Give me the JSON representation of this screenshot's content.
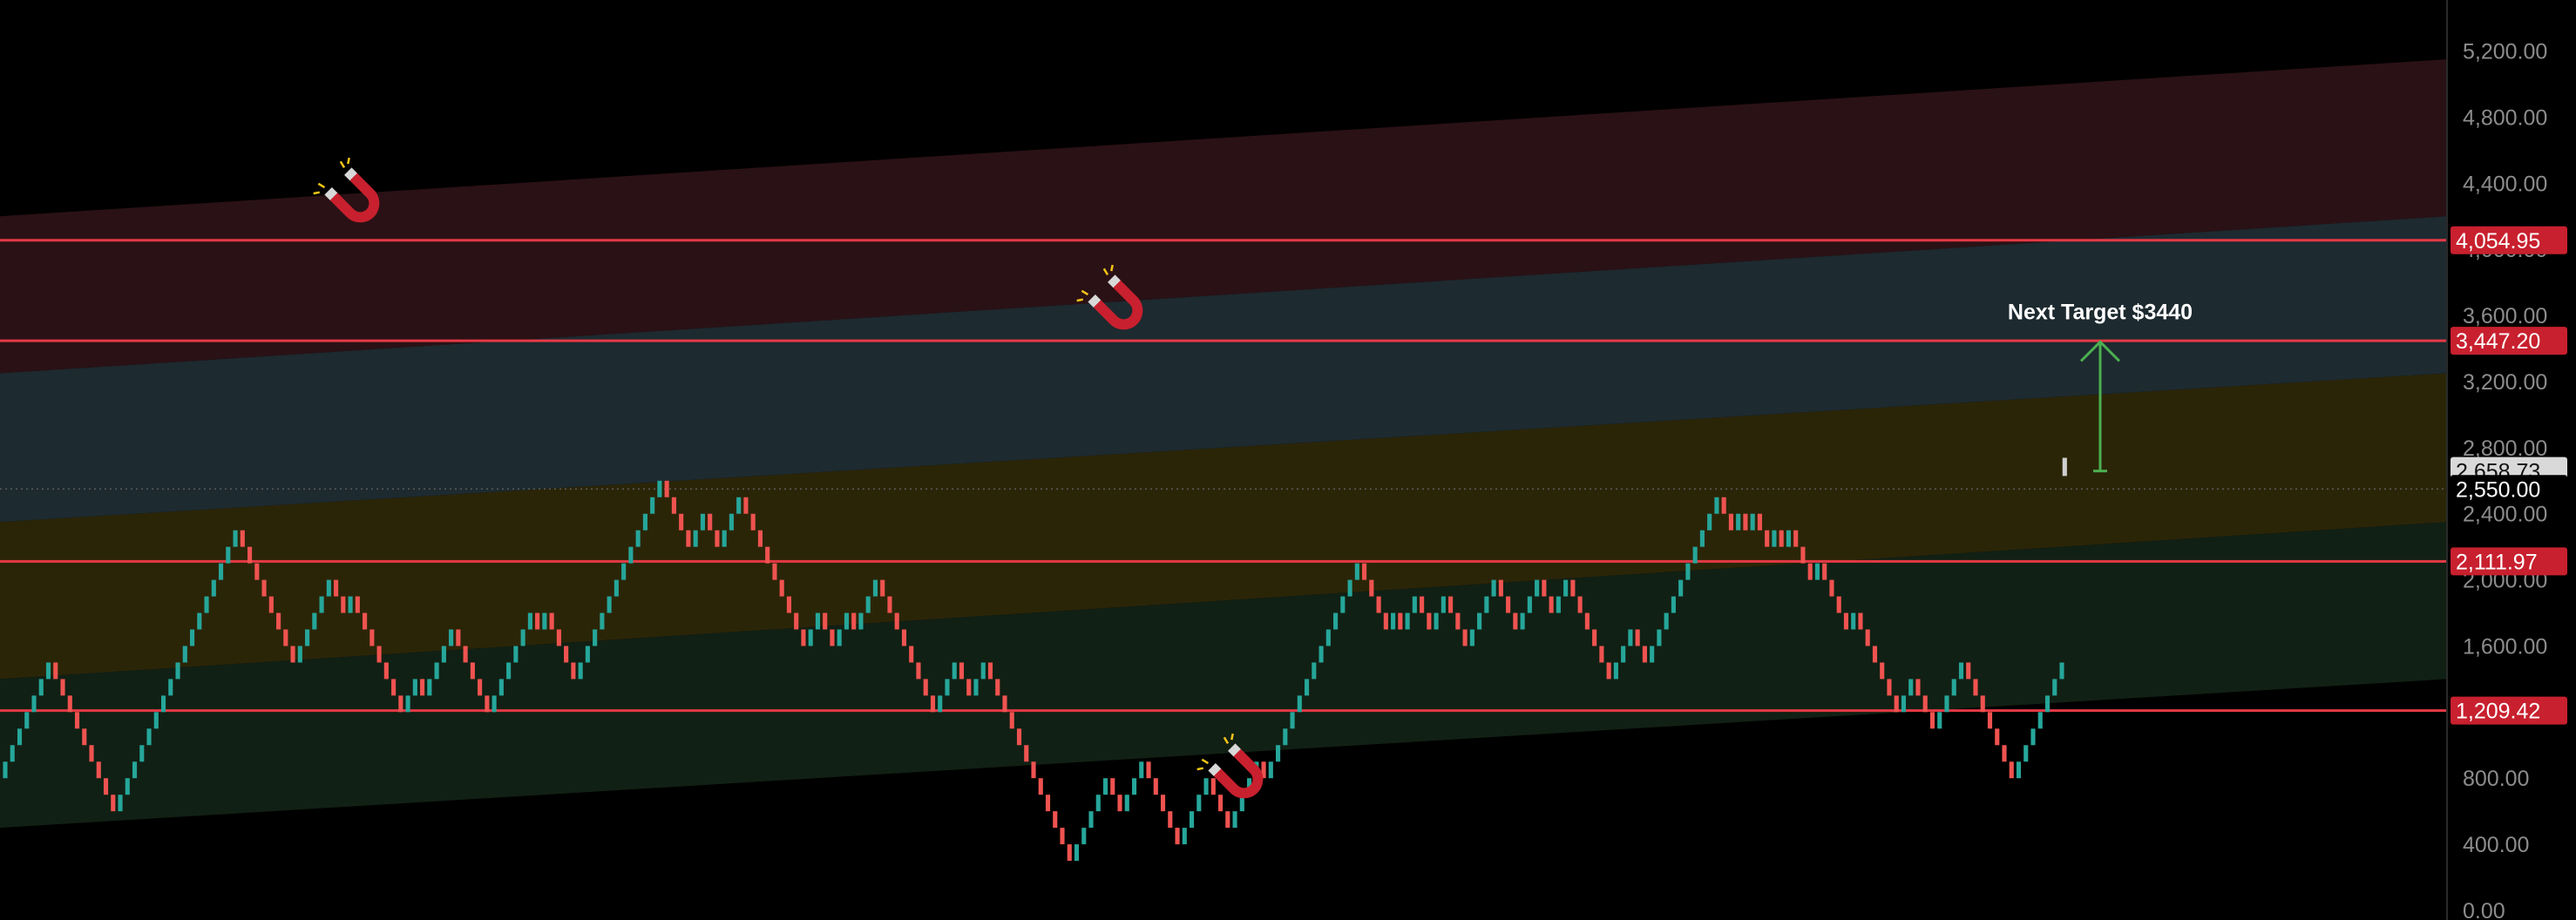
{
  "chart_data": {
    "type": "renko",
    "y_axis": {
      "position": "right",
      "ylim": [
        0,
        5500
      ],
      "ticks": [
        "0.00",
        "400.00",
        "800.00",
        "1,200.00",
        "1,600.00",
        "2,000.00",
        "2,400.00",
        "2,800.00",
        "3,200.00",
        "3,600.00",
        "4,000.00",
        "4,400.00",
        "4,800.00",
        "5,200.00"
      ],
      "tick_values": [
        0,
        400,
        800,
        1200,
        1600,
        2000,
        2400,
        2800,
        3200,
        3600,
        4000,
        4400,
        4800,
        5200
      ]
    },
    "levels": [
      {
        "value": 4054.95,
        "label": "4,054.95"
      },
      {
        "value": 3447.2,
        "label": "3,447.20"
      },
      {
        "value": 2111.97,
        "label": "2,111.97"
      },
      {
        "value": 1209.42,
        "label": "1,209.42"
      }
    ],
    "current_price": {
      "value": 2658.73,
      "label": "2,658.73"
    },
    "second_price": {
      "value": 2550.0,
      "label": "2,550.00"
    },
    "annotation": {
      "text": "Next Target $3440",
      "from_value": 2658.73,
      "to_value": 3440
    },
    "bands": [
      {
        "color": "#2a1115",
        "top": [
          4200,
          5150
        ],
        "bottom": [
          3250,
          4200
        ]
      },
      {
        "color": "#1d2a30",
        "top": [
          3250,
          4200
        ],
        "bottom": [
          2350,
          3250
        ]
      },
      {
        "color": "#2b2508",
        "top": [
          2350,
          3250
        ],
        "bottom": [
          1400,
          2350
        ]
      },
      {
        "color": "#112014",
        "top": [
          1400,
          2350
        ],
        "bottom": [
          500,
          1400
        ]
      }
    ],
    "renko": {
      "start": 800,
      "brick_size": 100,
      "segments": [
        7,
        -9,
        17,
        -8,
        5,
        -2,
        1,
        -7,
        2,
        -1,
        4,
        -5,
        6,
        -1,
        1,
        -4,
        12,
        -4,
        2,
        -2,
        3,
        -9,
        2,
        -2,
        2,
        -1,
        3,
        -8,
        2,
        1,
        -2,
        2,
        -12,
        5,
        -2,
        3,
        -5,
        4,
        -3,
        4,
        -1,
        13,
        -4,
        1,
        -1,
        2,
        -2,
        2,
        -3,
        4,
        -3,
        3,
        -2,
        2,
        -6,
        3,
        -2,
        1,
        1,
        5,
        3,
        -2,
        1,
        -1,
        1,
        -2,
        1,
        -1,
        1,
        -3,
        1,
        -4,
        1,
        -6,
        2,
        -3,
        4,
        -7,
        6,
        1
      ]
    },
    "magnet_icons": [
      "magnet-icon",
      "magnet-icon",
      "magnet-icon"
    ],
    "colors": {
      "up": "#26a69a",
      "down": "#ef5350",
      "level_line": "#e53945",
      "level_badge": "#c8202e",
      "price_badge": "#d9d9d9",
      "target_arrow": "#4caf50",
      "magnet": "#c8202e"
    }
  }
}
